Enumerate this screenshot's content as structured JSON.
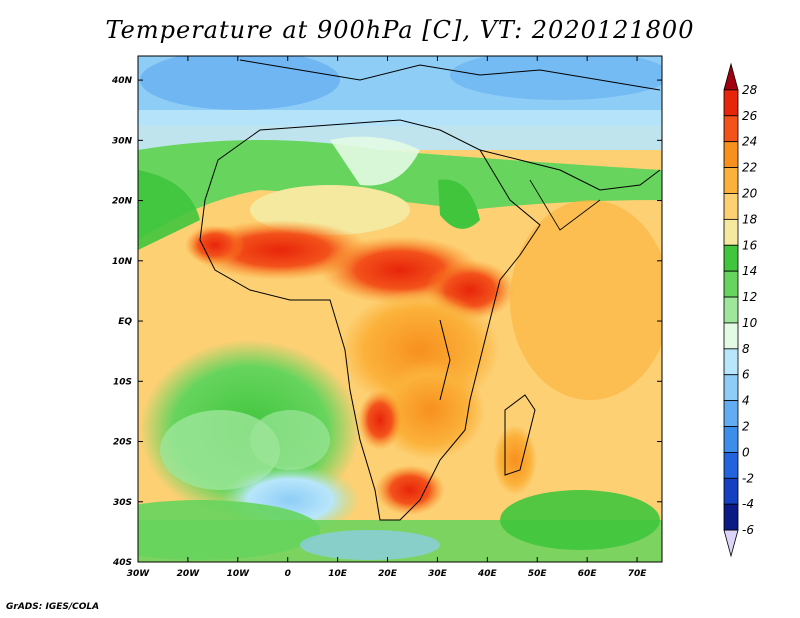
{
  "title": "Temperature at 900hPa [C], VT: 2020121800",
  "credit": "GrADS: IGES/COLA",
  "map": {
    "lat_labels": [
      "40N",
      "30N",
      "20N",
      "10N",
      "EQ",
      "10S",
      "20S",
      "30S",
      "40S"
    ],
    "lon_labels": [
      "30W",
      "20W",
      "10W",
      "0",
      "10E",
      "20E",
      "30E",
      "40E",
      "50E",
      "60E",
      "70E"
    ],
    "lon_range": [
      -30,
      75
    ],
    "lat_range": [
      -40,
      44
    ]
  },
  "colorbar": {
    "labels": [
      "28",
      "26",
      "24",
      "22",
      "20",
      "18",
      "16",
      "14",
      "12",
      "10",
      "8",
      "6",
      "4",
      "2",
      "0",
      "-2",
      "-4",
      "-6"
    ],
    "colors": [
      "#a0000f",
      "#e7250a",
      "#f3521b",
      "#f8901e",
      "#fbb23b",
      "#fdd074",
      "#f5e9a0",
      "#40c53d",
      "#66d45d",
      "#9de69a",
      "#e3fbe4",
      "#b8e6fb",
      "#8ecdf6",
      "#62adf1",
      "#3c8eea",
      "#2363dd",
      "#1540bf",
      "#0b1b86",
      "#dcd3f8"
    ],
    "colors_note_order": "top arrow to bottom arrow"
  }
}
